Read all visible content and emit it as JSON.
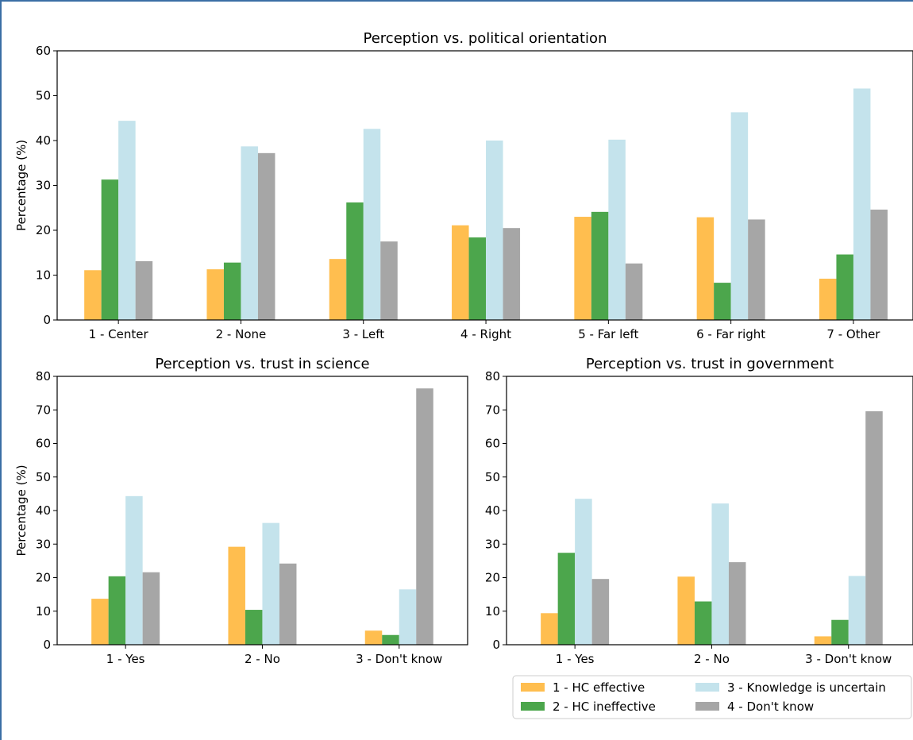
{
  "colors": {
    "series": [
      "#ffbe4f",
      "#4ca64c",
      "#c4e3ec",
      "#a6a6a6"
    ]
  },
  "legend": {
    "labels": [
      "1 - HC effective",
      "2 - HC ineffective",
      "3 - Knowledge is uncertain",
      "4 - Don't know"
    ]
  },
  "chart_data": [
    {
      "type": "bar",
      "title": "Perception vs. political orientation",
      "xlabel": "",
      "ylabel": "Percentage (%)",
      "ylim": [
        0,
        60
      ],
      "yticks": [
        0,
        10,
        20,
        30,
        40,
        50,
        60
      ],
      "categories": [
        "1 - Center",
        "2 - None",
        "3 - Left",
        "4 - Right",
        "5 - Far left",
        "6 - Far right",
        "7 - Other"
      ],
      "series": [
        {
          "name": "1 - HC effective",
          "values": [
            11.1,
            11.3,
            13.6,
            21.1,
            23.0,
            22.9,
            9.2
          ]
        },
        {
          "name": "2 - HC ineffective",
          "values": [
            31.3,
            12.8,
            26.2,
            18.4,
            24.1,
            8.3,
            14.6
          ]
        },
        {
          "name": "3 - Knowledge is uncertain",
          "values": [
            44.4,
            38.7,
            42.6,
            40.0,
            40.2,
            46.3,
            51.6
          ]
        },
        {
          "name": "4 - Don't know",
          "values": [
            13.1,
            37.2,
            17.5,
            20.5,
            12.6,
            22.4,
            24.6
          ]
        }
      ]
    },
    {
      "type": "bar",
      "title": "Perception vs. trust in science",
      "xlabel": "",
      "ylabel": "Percentage (%)",
      "ylim": [
        0,
        80
      ],
      "yticks": [
        0,
        10,
        20,
        30,
        40,
        50,
        60,
        70,
        80
      ],
      "categories": [
        "1 - Yes",
        "2 - No",
        "3 - Don't know"
      ],
      "series": [
        {
          "name": "1 - HC effective",
          "values": [
            13.7,
            29.2,
            4.2
          ]
        },
        {
          "name": "2 - HC ineffective",
          "values": [
            20.4,
            10.4,
            2.9
          ]
        },
        {
          "name": "3 - Knowledge is uncertain",
          "values": [
            44.3,
            36.3,
            16.5
          ]
        },
        {
          "name": "4 - Don't know",
          "values": [
            21.6,
            24.2,
            76.4
          ]
        }
      ]
    },
    {
      "type": "bar",
      "title": "Perception vs. trust in government",
      "xlabel": "",
      "ylabel": "",
      "ylim": [
        0,
        80
      ],
      "yticks": [
        0,
        10,
        20,
        30,
        40,
        50,
        60,
        70,
        80
      ],
      "categories": [
        "1 - Yes",
        "2 - No",
        "3 - Don't know"
      ],
      "series": [
        {
          "name": "1 - HC effective",
          "values": [
            9.4,
            20.3,
            2.5
          ]
        },
        {
          "name": "2 - HC ineffective",
          "values": [
            27.4,
            12.9,
            7.4
          ]
        },
        {
          "name": "3 - Knowledge is uncertain",
          "values": [
            43.5,
            42.1,
            20.5
          ]
        },
        {
          "name": "4 - Don't know",
          "values": [
            19.6,
            24.6,
            69.6
          ]
        }
      ]
    }
  ]
}
